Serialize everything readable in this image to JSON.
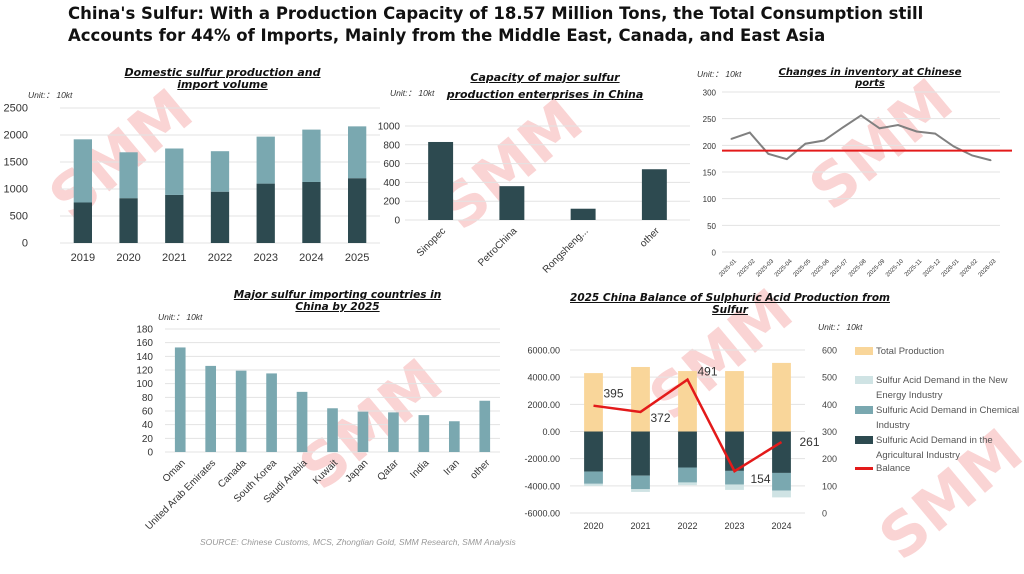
{
  "title": "China's Sulfur: With a Production Capacity of 18.57 Million Tons, the Total Consumption still Accounts for 44% of Imports, Mainly from the Middle East, Canada, and East Asia",
  "source": "SOURCE: Chinese Customs, MCS, Zhonglian Gold, SMM Research, SMM Analysis",
  "watermark": "SMM Shanghai Metals Market",
  "colors": {
    "dark": "#2d4a50",
    "teal": "#7aa8b0",
    "light": "#cfe3e4",
    "gold": "#f9d69a",
    "red": "#e31a1a",
    "grey": "#808080"
  },
  "chart_data": [
    {
      "type": "bar",
      "stacked": true,
      "title": "Domestic sulfur production and import volume",
      "unit": "Unit:： 10kt",
      "categories": [
        "2019",
        "2020",
        "2021",
        "2022",
        "2023",
        "2024",
        "2025"
      ],
      "series": [
        {
          "values": [
            750,
            830,
            890,
            950,
            1100,
            1130,
            1200
          ],
          "color": "#2d4a50"
        },
        {
          "values": [
            1170,
            850,
            860,
            750,
            870,
            970,
            960
          ],
          "color": "#7aa8b0"
        }
      ],
      "ylim": [
        0,
        2500
      ],
      "yticks": [
        "0",
        "500",
        "1000",
        "1500",
        "2000",
        "2500"
      ],
      "grid": true
    },
    {
      "type": "bar",
      "title": "Capacity of major sulfur production enterprises in China",
      "unit": "Unit:： 10kt",
      "categories": [
        "Sinopec",
        "PetroChina",
        "Rongsheng...",
        "other"
      ],
      "series": [
        {
          "values": [
            830,
            360,
            120,
            540
          ],
          "color": "#2d4a50"
        }
      ],
      "ylim": [
        0,
        1000
      ],
      "yticks": [
        "0",
        "200",
        "400",
        "600",
        "800",
        "1000"
      ],
      "grid": true
    },
    {
      "type": "line",
      "title": "Changes in inventory at Chinese ports",
      "unit": "Unit:： 10kt",
      "categories": [
        "2025-01",
        "2025-02",
        "2025-03",
        "2025-04",
        "2025-05",
        "2025-06",
        "2025-07",
        "2025-08",
        "2025-09",
        "2025-10",
        "2025-11",
        "2025-12",
        "2026-01",
        "2026-02",
        "2026-03"
      ],
      "series": [
        {
          "values": [
            212,
            224,
            184,
            174,
            203,
            209,
            233,
            256,
            232,
            238,
            226,
            222,
            198,
            181,
            172
          ],
          "color": "#808080"
        }
      ],
      "reference_line": {
        "value": 190,
        "color": "#e31a1a"
      },
      "ylim": [
        0,
        300
      ],
      "yticks": [
        "0",
        "50",
        "100",
        "150",
        "200",
        "250",
        "300"
      ],
      "grid": true
    },
    {
      "type": "bar",
      "title": "Major sulfur importing countries in China by 2025",
      "unit": "Unit:： 10kt",
      "categories": [
        "Oman",
        "United Arab Emirates",
        "Canada",
        "South Korea",
        "Saudi Arabia",
        "Kuwait",
        "Japan",
        "Qatar",
        "India",
        "Iran",
        "other"
      ],
      "series": [
        {
          "values": [
            153,
            126,
            119,
            115,
            88,
            64,
            59,
            58,
            54,
            45,
            75
          ],
          "color": "#7aa8b0"
        }
      ],
      "ylim": [
        0,
        180
      ],
      "yticks": [
        "0",
        "20",
        "40",
        "60",
        "80",
        "100",
        "120",
        "140",
        "160",
        "180"
      ],
      "grid": true
    },
    {
      "type": "bar",
      "stacked": true,
      "title": "2025 China Balance of Sulphuric Acid Production from Sulfur",
      "unit": "Unit:： 10kt",
      "categories": [
        "2020",
        "2021",
        "2022",
        "2023",
        "2024"
      ],
      "series": [
        {
          "name": "Total Production",
          "values": [
            4300,
            4750,
            4450,
            4450,
            5050
          ],
          "color": "#f9d69a"
        },
        {
          "name": "Sulfuric Acid Demand in the Agricultural Industry",
          "values": [
            -2950,
            -3250,
            -2650,
            -2900,
            -3050
          ],
          "color": "#2d4a50"
        },
        {
          "name": "Sulfuric Acid Demand in Chemical Industry",
          "values": [
            -900,
            -1000,
            -1100,
            -1000,
            -1300
          ],
          "color": "#7aa8b0"
        },
        {
          "name": "Sulfur Acid Demand in the New Energy Industry",
          "values": [
            -150,
            -200,
            -200,
            -400,
            -500
          ],
          "color": "#cfe3e4"
        }
      ],
      "line_series": {
        "name": "Balance",
        "values": [
          395,
          372,
          491,
          154,
          261
        ],
        "labels": [
          "395",
          "372",
          "491",
          "154",
          "261"
        ],
        "color": "#e31a1a",
        "axis": "right"
      },
      "ylim": [
        -6000,
        6000
      ],
      "yticks": [
        "-6000.00",
        "-4000.00",
        "-2000.00",
        "0.00",
        "2000.00",
        "4000.00",
        "6000.00"
      ],
      "y2lim": [
        0,
        600
      ],
      "y2ticks": [
        "0",
        "100",
        "200",
        "300",
        "400",
        "500",
        "600"
      ],
      "legend": {
        "position": "right",
        "items": [
          "Total Production",
          "Sulfur Acid Demand in the New Energy Industry",
          "Sulfuric Acid Demand in Chemical Industry",
          "Sulfuric Acid Demand in the Agricultural Industry",
          "Balance"
        ]
      },
      "grid": true
    }
  ]
}
